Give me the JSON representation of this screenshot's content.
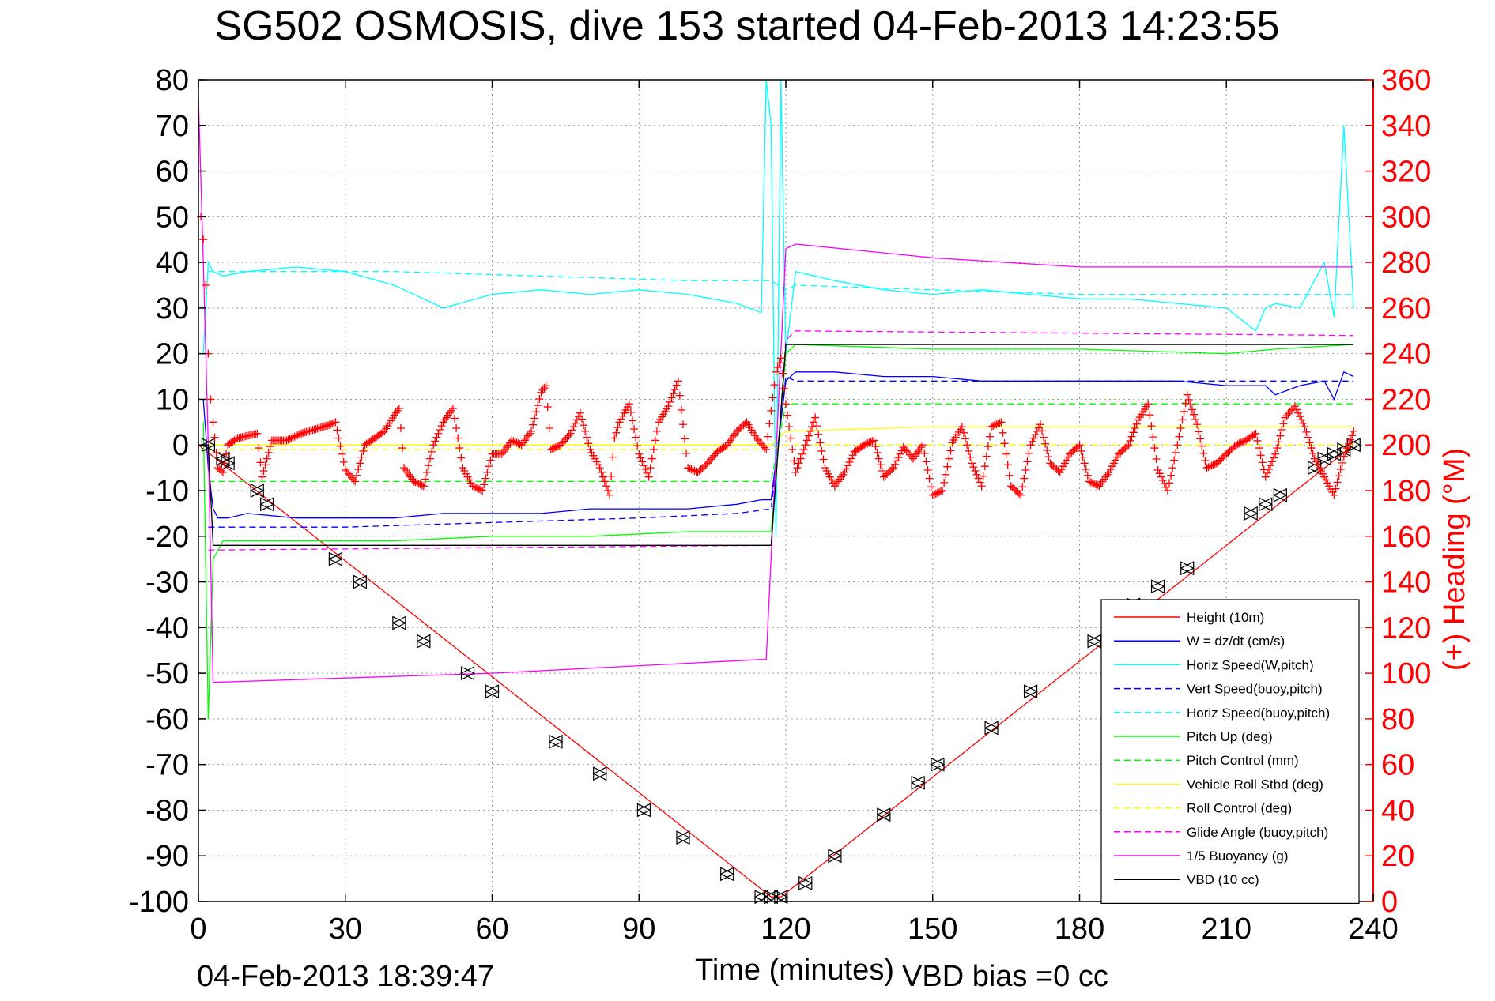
{
  "chart_data": {
    "type": "line",
    "title": "SG502 OSMOSIS, dive 153 started 04-Feb-2013 14:23:55",
    "xlabel": "Time (minutes)",
    "ylabel": "",
    "y2label": "(+) Heading (°M)",
    "xlim": [
      0,
      240
    ],
    "ylim": [
      -100,
      80
    ],
    "y2lim": [
      0,
      360
    ],
    "x_ticks": [
      0,
      30,
      60,
      90,
      120,
      150,
      180,
      210,
      240
    ],
    "y_ticks": [
      80,
      70,
      60,
      50,
      40,
      30,
      20,
      10,
      0,
      -10,
      -20,
      -30,
      -40,
      -50,
      -60,
      -70,
      -80,
      -90,
      -100
    ],
    "y2_ticks": [
      360,
      340,
      320,
      300,
      280,
      260,
      240,
      220,
      200,
      180,
      160,
      140,
      120,
      100,
      80,
      60,
      40,
      20,
      0
    ],
    "grid": true,
    "legend_position": "lower-right",
    "footer_left": "04-Feb-2013 18:39:47",
    "footer_right": "VBD bias =0 cc",
    "series": [
      {
        "name": "Height (10m)",
        "color": "#ff0000",
        "dash": "solid",
        "x": [
          0,
          117,
          119,
          236
        ],
        "y": [
          0,
          -99,
          -99,
          0
        ]
      },
      {
        "name": "W = dz/dt (cm/s)",
        "color": "#0000ff",
        "dash": "solid",
        "x": [
          1,
          2,
          3,
          4,
          6,
          10,
          20,
          30,
          40,
          50,
          60,
          70,
          80,
          90,
          100,
          110,
          115,
          117,
          120,
          122,
          130,
          140,
          150,
          160,
          170,
          180,
          190,
          200,
          210,
          218,
          220,
          225,
          230,
          232,
          234,
          236
        ],
        "y": [
          10,
          -5,
          -14,
          -16,
          -16,
          -15,
          -16,
          -16,
          -16,
          -15,
          -15,
          -15,
          -14,
          -14,
          -14,
          -13,
          -12,
          -12,
          14,
          16,
          16,
          15,
          15,
          14,
          14,
          14,
          14,
          14,
          13,
          13,
          11,
          13,
          14,
          10,
          16,
          15
        ]
      },
      {
        "name": "Horiz Speed(W,pitch)",
        "color": "#00ffff",
        "dash": "solid",
        "x": [
          1,
          2,
          3,
          5,
          10,
          20,
          30,
          40,
          50,
          60,
          70,
          80,
          90,
          100,
          110,
          115,
          116,
          117,
          118,
          119,
          120,
          122,
          130,
          140,
          150,
          160,
          170,
          180,
          190,
          200,
          210,
          216,
          218,
          220,
          225,
          230,
          232,
          234,
          236
        ],
        "y": [
          20,
          40,
          38,
          37,
          38,
          39,
          38,
          35,
          30,
          33,
          34,
          33,
          34,
          33,
          31,
          29,
          80,
          70,
          -20,
          80,
          20,
          38,
          36,
          34,
          33,
          34,
          33,
          32,
          32,
          31,
          30,
          25,
          30,
          31,
          30,
          40,
          28,
          70,
          30
        ]
      },
      {
        "name": "Vert Speed(buoy,pitch)",
        "color": "#0000ff",
        "dash": "dashed",
        "x": [
          2,
          5,
          30,
          60,
          90,
          110,
          117,
          120,
          122,
          150,
          180,
          210,
          236
        ],
        "y": [
          -18,
          -18,
          -18,
          -17,
          -16,
          -15,
          -14,
          15,
          14,
          14,
          14,
          14,
          14
        ]
      },
      {
        "name": "Horiz Speed(buoy,pitch)",
        "color": "#00ffff",
        "dash": "dashed",
        "x": [
          2,
          10,
          40,
          70,
          100,
          117,
          120,
          122,
          150,
          180,
          210,
          236
        ],
        "y": [
          38,
          38,
          38,
          37,
          36,
          36,
          34,
          35,
          34,
          33,
          33,
          33
        ]
      },
      {
        "name": "Pitch Up (deg)",
        "color": "#00ff00",
        "dash": "solid",
        "x": [
          1,
          2,
          3,
          5,
          20,
          40,
          60,
          80,
          100,
          117,
          120,
          122,
          150,
          180,
          210,
          220,
          236
        ],
        "y": [
          5,
          -60,
          -25,
          -21,
          -21,
          -21,
          -20,
          -20,
          -19,
          -19,
          20,
          22,
          21,
          21,
          20,
          21,
          22
        ]
      },
      {
        "name": "Pitch Control (mm)",
        "color": "#00ff00",
        "dash": "dashed",
        "x": [
          2,
          117,
          120,
          236
        ],
        "y": [
          -8,
          -8,
          9,
          9
        ]
      },
      {
        "name": "Vehicle Roll Stbd (deg)",
        "color": "#ffff00",
        "dash": "solid",
        "x": [
          2,
          5,
          30,
          60,
          90,
          117,
          120,
          150,
          180,
          210,
          236
        ],
        "y": [
          0,
          0,
          0,
          0,
          0,
          0,
          3,
          4,
          4,
          4,
          4
        ]
      },
      {
        "name": "Roll Control (deg)",
        "color": "#ffff00",
        "dash": "dashed",
        "x": [
          2,
          117,
          120,
          236
        ],
        "y": [
          -1,
          -1,
          0,
          0
        ]
      },
      {
        "name": "Glide Angle (buoy,pitch)",
        "color": "#ff00ff",
        "dash": "dashed",
        "x": [
          2,
          5,
          117,
          120,
          122,
          236
        ],
        "y": [
          -23,
          -23,
          -22,
          23,
          25,
          24
        ]
      },
      {
        "name": "1/5 Buoyancy (g)",
        "color": "#ff00ff",
        "dash": "solid",
        "x": [
          0,
          1,
          2,
          3,
          60,
          115,
          116,
          120,
          122,
          150,
          180,
          210,
          236
        ],
        "y": [
          76,
          40,
          0,
          -52,
          -50,
          -47,
          -47,
          43,
          44,
          41,
          39,
          39,
          39
        ]
      },
      {
        "name": "VBD (10 cc)",
        "color": "#000000",
        "dash": "solid",
        "x": [
          0,
          2,
          3,
          117,
          120,
          236
        ],
        "y": [
          0,
          0,
          -22,
          -22,
          22,
          22
        ]
      }
    ],
    "heading_series": {
      "name": "Heading",
      "axis": "right",
      "color": "#ff0000",
      "marker": "+",
      "x": [
        0.5,
        1,
        1.5,
        2,
        2.5,
        3,
        4,
        5,
        6,
        8,
        10,
        12,
        13,
        15,
        18,
        21,
        24,
        27,
        28,
        30,
        32,
        34,
        36,
        38,
        40,
        41,
        42,
        44,
        46,
        48,
        50,
        52,
        54,
        56,
        58,
        60,
        62,
        64,
        66,
        68,
        70,
        71,
        72,
        74,
        76,
        78,
        80,
        82,
        84,
        85,
        86,
        88,
        90,
        92,
        94,
        96,
        98,
        100,
        102,
        104,
        106,
        108,
        110,
        112,
        114,
        116,
        118,
        119,
        120,
        121,
        122,
        124,
        126,
        128,
        130,
        132,
        134,
        136,
        138,
        140,
        142,
        144,
        146,
        148,
        150,
        152,
        154,
        156,
        158,
        160,
        162,
        164,
        166,
        168,
        170,
        172,
        174,
        176,
        178,
        180,
        182,
        184,
        186,
        188,
        190,
        192,
        194,
        196,
        198,
        200,
        202,
        204,
        206,
        208,
        210,
        212,
        214,
        216,
        218,
        220,
        222,
        224,
        226,
        228,
        230,
        232,
        234,
        236
      ],
      "y": [
        300,
        290,
        270,
        240,
        220,
        210,
        190,
        188,
        200,
        203,
        204,
        205,
        186,
        202,
        202,
        205,
        207,
        209,
        210,
        189,
        184,
        200,
        203,
        206,
        213,
        216,
        190,
        184,
        182,
        200,
        210,
        216,
        190,
        182,
        180,
        196,
        196,
        202,
        200,
        206,
        223,
        226,
        198,
        200,
        205,
        214,
        198,
        190,
        178,
        203,
        210,
        218,
        196,
        186,
        210,
        217,
        228,
        190,
        188,
        192,
        197,
        200,
        206,
        210,
        203,
        198,
        232,
        238,
        218,
        203,
        188,
        200,
        212,
        190,
        182,
        188,
        197,
        200,
        202,
        186,
        190,
        199,
        194,
        200,
        178,
        180,
        201,
        208,
        192,
        182,
        208,
        210,
        182,
        178,
        200,
        209,
        192,
        188,
        196,
        200,
        184,
        182,
        188,
        196,
        200,
        211,
        218,
        189,
        180,
        200,
        222,
        209,
        190,
        192,
        196,
        200,
        202,
        205,
        186,
        196,
        212,
        217,
        208,
        194,
        186,
        178,
        195,
        206
      ]
    },
    "vbd_markers": {
      "name": "VBD markers",
      "color": "#000000",
      "x": [
        2,
        5,
        6,
        12,
        14,
        28,
        33,
        41,
        46,
        55,
        60,
        73,
        82,
        91,
        99,
        108,
        115,
        117,
        119,
        124,
        130,
        140,
        147,
        151,
        162,
        170,
        183,
        191,
        196,
        202,
        215,
        218,
        221,
        228,
        230,
        232,
        234,
        236
      ],
      "y": [
        0,
        -3,
        -4,
        -10,
        -13,
        -25,
        -30,
        -39,
        -43,
        -50,
        -54,
        -65,
        -72,
        -80,
        -86,
        -94,
        -99,
        -99,
        -99,
        -96,
        -90,
        -81,
        -74,
        -70,
        -62,
        -54,
        -43,
        -35,
        -31,
        -27,
        -15,
        -13,
        -11,
        -5,
        -3,
        -2,
        -1,
        0
      ]
    }
  }
}
